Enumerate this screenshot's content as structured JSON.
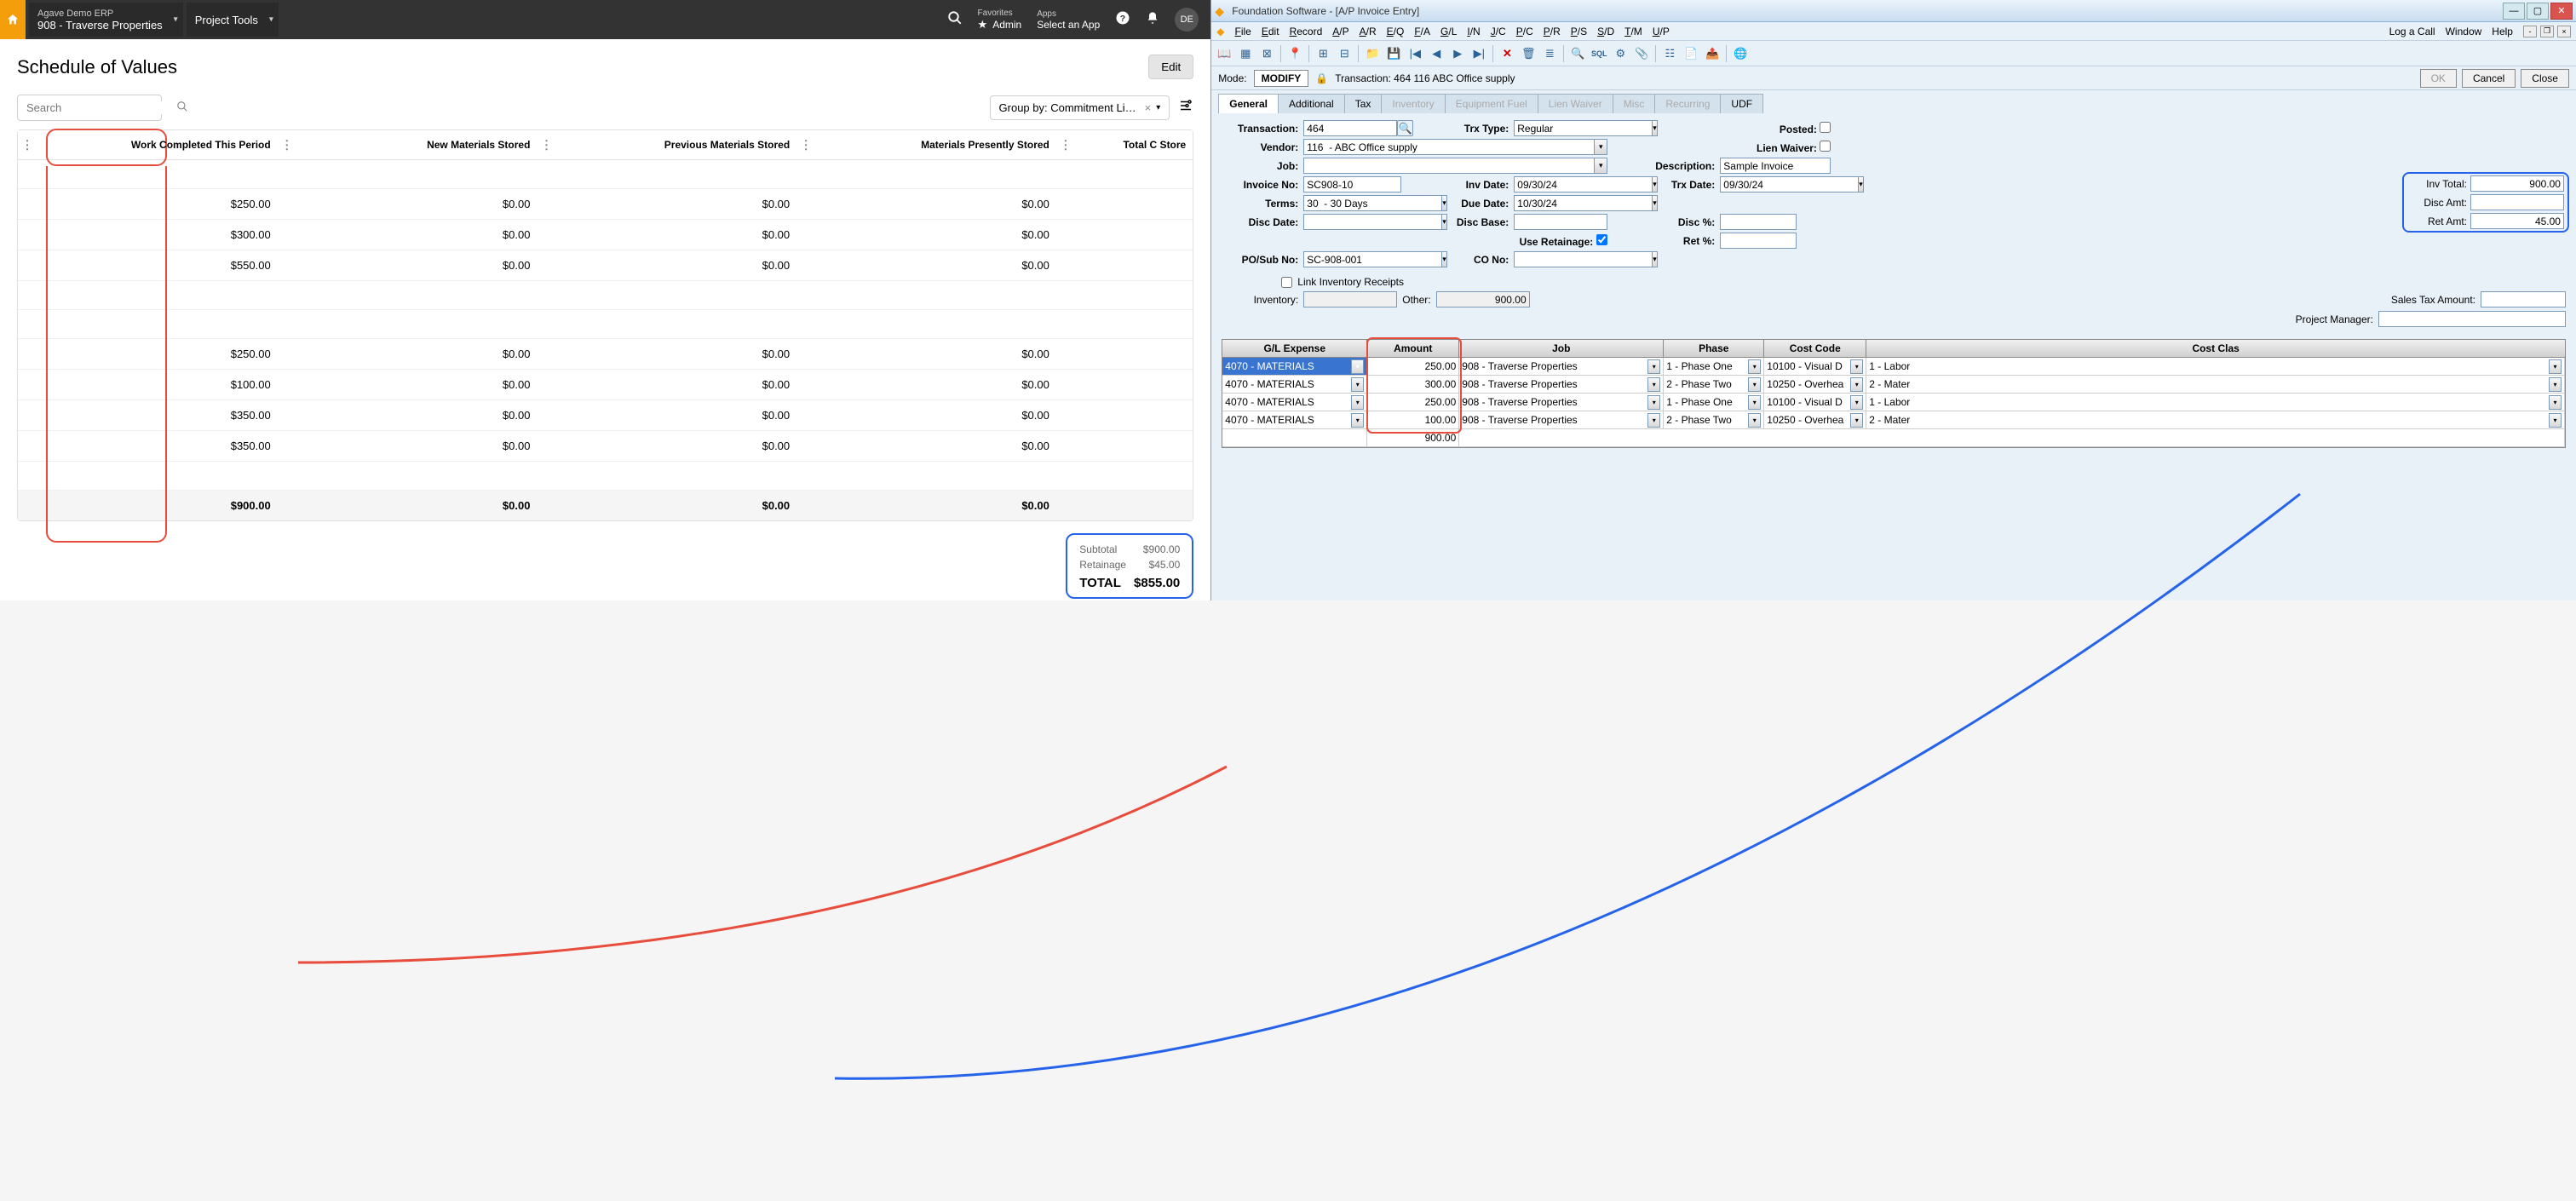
{
  "erp": {
    "app_title": "Agave Demo ERP",
    "app_sub": "908 - Traverse Properties",
    "tools_title": "Project Tools",
    "favorites_label": "Favorites",
    "favorites_sub": "Admin",
    "apps_label": "Apps",
    "apps_sub": "Select an App",
    "avatar": "DE",
    "page_title": "Schedule of Values",
    "edit_btn": "Edit",
    "search_placeholder": "Search",
    "groupby_label": "Group by: Commitment Li…",
    "columns": {
      "c1": "Work Completed This Period",
      "c2": "New Materials Stored",
      "c3": "Previous Materials Stored",
      "c4": "Materials Presently Stored",
      "c5": "Total C Store"
    },
    "rows": [
      {
        "c1": "",
        "c2": "",
        "c3": "",
        "c4": ""
      },
      {
        "c1": "$250.00",
        "c2": "$0.00",
        "c3": "$0.00",
        "c4": "$0.00"
      },
      {
        "c1": "$300.00",
        "c2": "$0.00",
        "c3": "$0.00",
        "c4": "$0.00"
      },
      {
        "c1": "$550.00",
        "c2": "$0.00",
        "c3": "$0.00",
        "c4": "$0.00"
      },
      {
        "c1": "",
        "c2": "",
        "c3": "",
        "c4": ""
      },
      {
        "c1": "",
        "c2": "",
        "c3": "",
        "c4": ""
      },
      {
        "c1": "$250.00",
        "c2": "$0.00",
        "c3": "$0.00",
        "c4": "$0.00"
      },
      {
        "c1": "$100.00",
        "c2": "$0.00",
        "c3": "$0.00",
        "c4": "$0.00"
      },
      {
        "c1": "$350.00",
        "c2": "$0.00",
        "c3": "$0.00",
        "c4": "$0.00"
      },
      {
        "c1": "$350.00",
        "c2": "$0.00",
        "c3": "$0.00",
        "c4": "$0.00"
      },
      {
        "c1": "",
        "c2": "",
        "c3": "",
        "c4": ""
      }
    ],
    "total": {
      "c1": "$900.00",
      "c2": "$0.00",
      "c3": "$0.00",
      "c4": "$0.00"
    },
    "summary": {
      "subtotal_label": "Subtotal",
      "subtotal": "$900.00",
      "retainage_label": "Retainage",
      "retainage": "$45.00",
      "total_label": "TOTAL",
      "total": "$855.00"
    }
  },
  "fnd": {
    "window_title": "Foundation Software - [A/P Invoice Entry]",
    "menus": [
      "File",
      "Edit",
      "Record",
      "A/P",
      "A/R",
      "E/Q",
      "F/A",
      "G/L",
      "I/N",
      "J/C",
      "P/C",
      "P/R",
      "P/S",
      "S/D",
      "T/M",
      "U/P"
    ],
    "right_menus": [
      "Log a Call",
      "Window",
      "Help"
    ],
    "mode_label": "Mode:",
    "mode_value": "MODIFY",
    "trx_header": "Transaction: 464   116  ABC Office supply",
    "btn_ok": "OK",
    "btn_cancel": "Cancel",
    "btn_close": "Close",
    "tabs": [
      "General",
      "Additional",
      "Tax",
      "Inventory",
      "Equipment Fuel",
      "Lien Waiver",
      "Misc",
      "Recurring",
      "UDF"
    ],
    "labels": {
      "transaction": "Transaction:",
      "trx_type": "Trx Type:",
      "posted": "Posted:",
      "vendor": "Vendor:",
      "lien_waiver": "Lien Waiver:",
      "job": "Job:",
      "description": "Description:",
      "invoice_no": "Invoice No:",
      "inv_date": "Inv Date:",
      "trx_date": "Trx Date:",
      "inv_total": "Inv Total:",
      "terms": "Terms:",
      "due_date": "Due Date:",
      "disc_date": "Disc Date:",
      "disc_base": "Disc Base:",
      "disc_pct": "Disc %:",
      "disc_amt": "Disc Amt:",
      "use_retainage": "Use Retainage:",
      "ret_pct": "Ret %:",
      "ret_amt": "Ret Amt:",
      "po_sub": "PO/Sub No:",
      "co_no": "CO No:",
      "link_inv": "Link Inventory Receipts",
      "inventory": "Inventory:",
      "other": "Other:",
      "sales_tax": "Sales Tax Amount:",
      "pm": "Project Manager:"
    },
    "values": {
      "transaction": "464",
      "trx_type": "Regular",
      "vendor": "116  - ABC Office supply",
      "description": "Sample Invoice",
      "invoice_no": "SC908-10",
      "inv_date": "09/30/24",
      "trx_date": "09/30/24",
      "inv_total": "900.00",
      "terms": "30  - 30 Days",
      "due_date": "10/30/24",
      "disc_amt": "",
      "ret_amt": "45.00",
      "po_sub": "SC-908-001",
      "other": "900.00"
    },
    "grid": {
      "columns": {
        "gl": "G/L Expense",
        "amt": "Amount",
        "job": "Job",
        "ph": "Phase",
        "cc": "Cost Code",
        "cl": "Cost Clas"
      },
      "rows": [
        {
          "gl": "4070  - MATERIALS",
          "amt": "250.00",
          "job": "908  - Traverse Properties",
          "ph": "1  - Phase One",
          "cc": "10100  - Visual D",
          "cl": "1  - Labor"
        },
        {
          "gl": "4070  - MATERIALS",
          "amt": "300.00",
          "job": "908  - Traverse Properties",
          "ph": "2  - Phase Two",
          "cc": "10250  - Overhea",
          "cl": "2  - Mater"
        },
        {
          "gl": "4070  - MATERIALS",
          "amt": "250.00",
          "job": "908  - Traverse Properties",
          "ph": "1  - Phase One",
          "cc": "10100  - Visual D",
          "cl": "1  - Labor"
        },
        {
          "gl": "4070  - MATERIALS",
          "amt": "100.00",
          "job": "908  - Traverse Properties",
          "ph": "2  - Phase Two",
          "cc": "10250  - Overhea",
          "cl": "2  - Mater"
        }
      ],
      "total": "900.00"
    }
  },
  "colors": {
    "red": "#e74c3c",
    "blue": "#2563eb",
    "orange": "#f59e0b"
  }
}
